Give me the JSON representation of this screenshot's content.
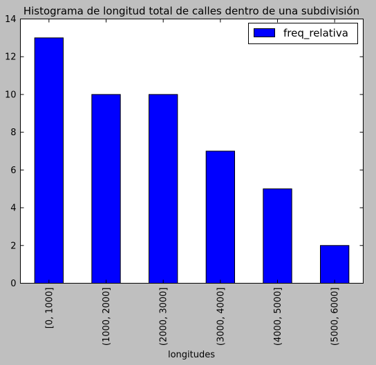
{
  "chart_data": {
    "type": "bar",
    "title": "Histograma de longitud total de calles dentro de una subdivisión",
    "xlabel": "longitudes",
    "ylabel": "",
    "categories": [
      "[0, 1000]",
      "(1000, 2000]",
      "(2000, 3000]",
      "(3000, 4000]",
      "(4000, 5000]",
      "(5000, 6000]"
    ],
    "series": [
      {
        "name": "freq_relativa",
        "values": [
          13,
          10,
          10,
          7,
          5,
          2
        ]
      }
    ],
    "ylim": [
      0,
      14
    ],
    "yticks": [
      "0",
      "2",
      "4",
      "6",
      "8",
      "10",
      "12",
      "14"
    ],
    "legend_position": "top-right",
    "grid": false,
    "colors": {
      "bar": "#0000ff",
      "plot_background": "#ffffff",
      "figure_background": "#bfbfbf"
    }
  }
}
